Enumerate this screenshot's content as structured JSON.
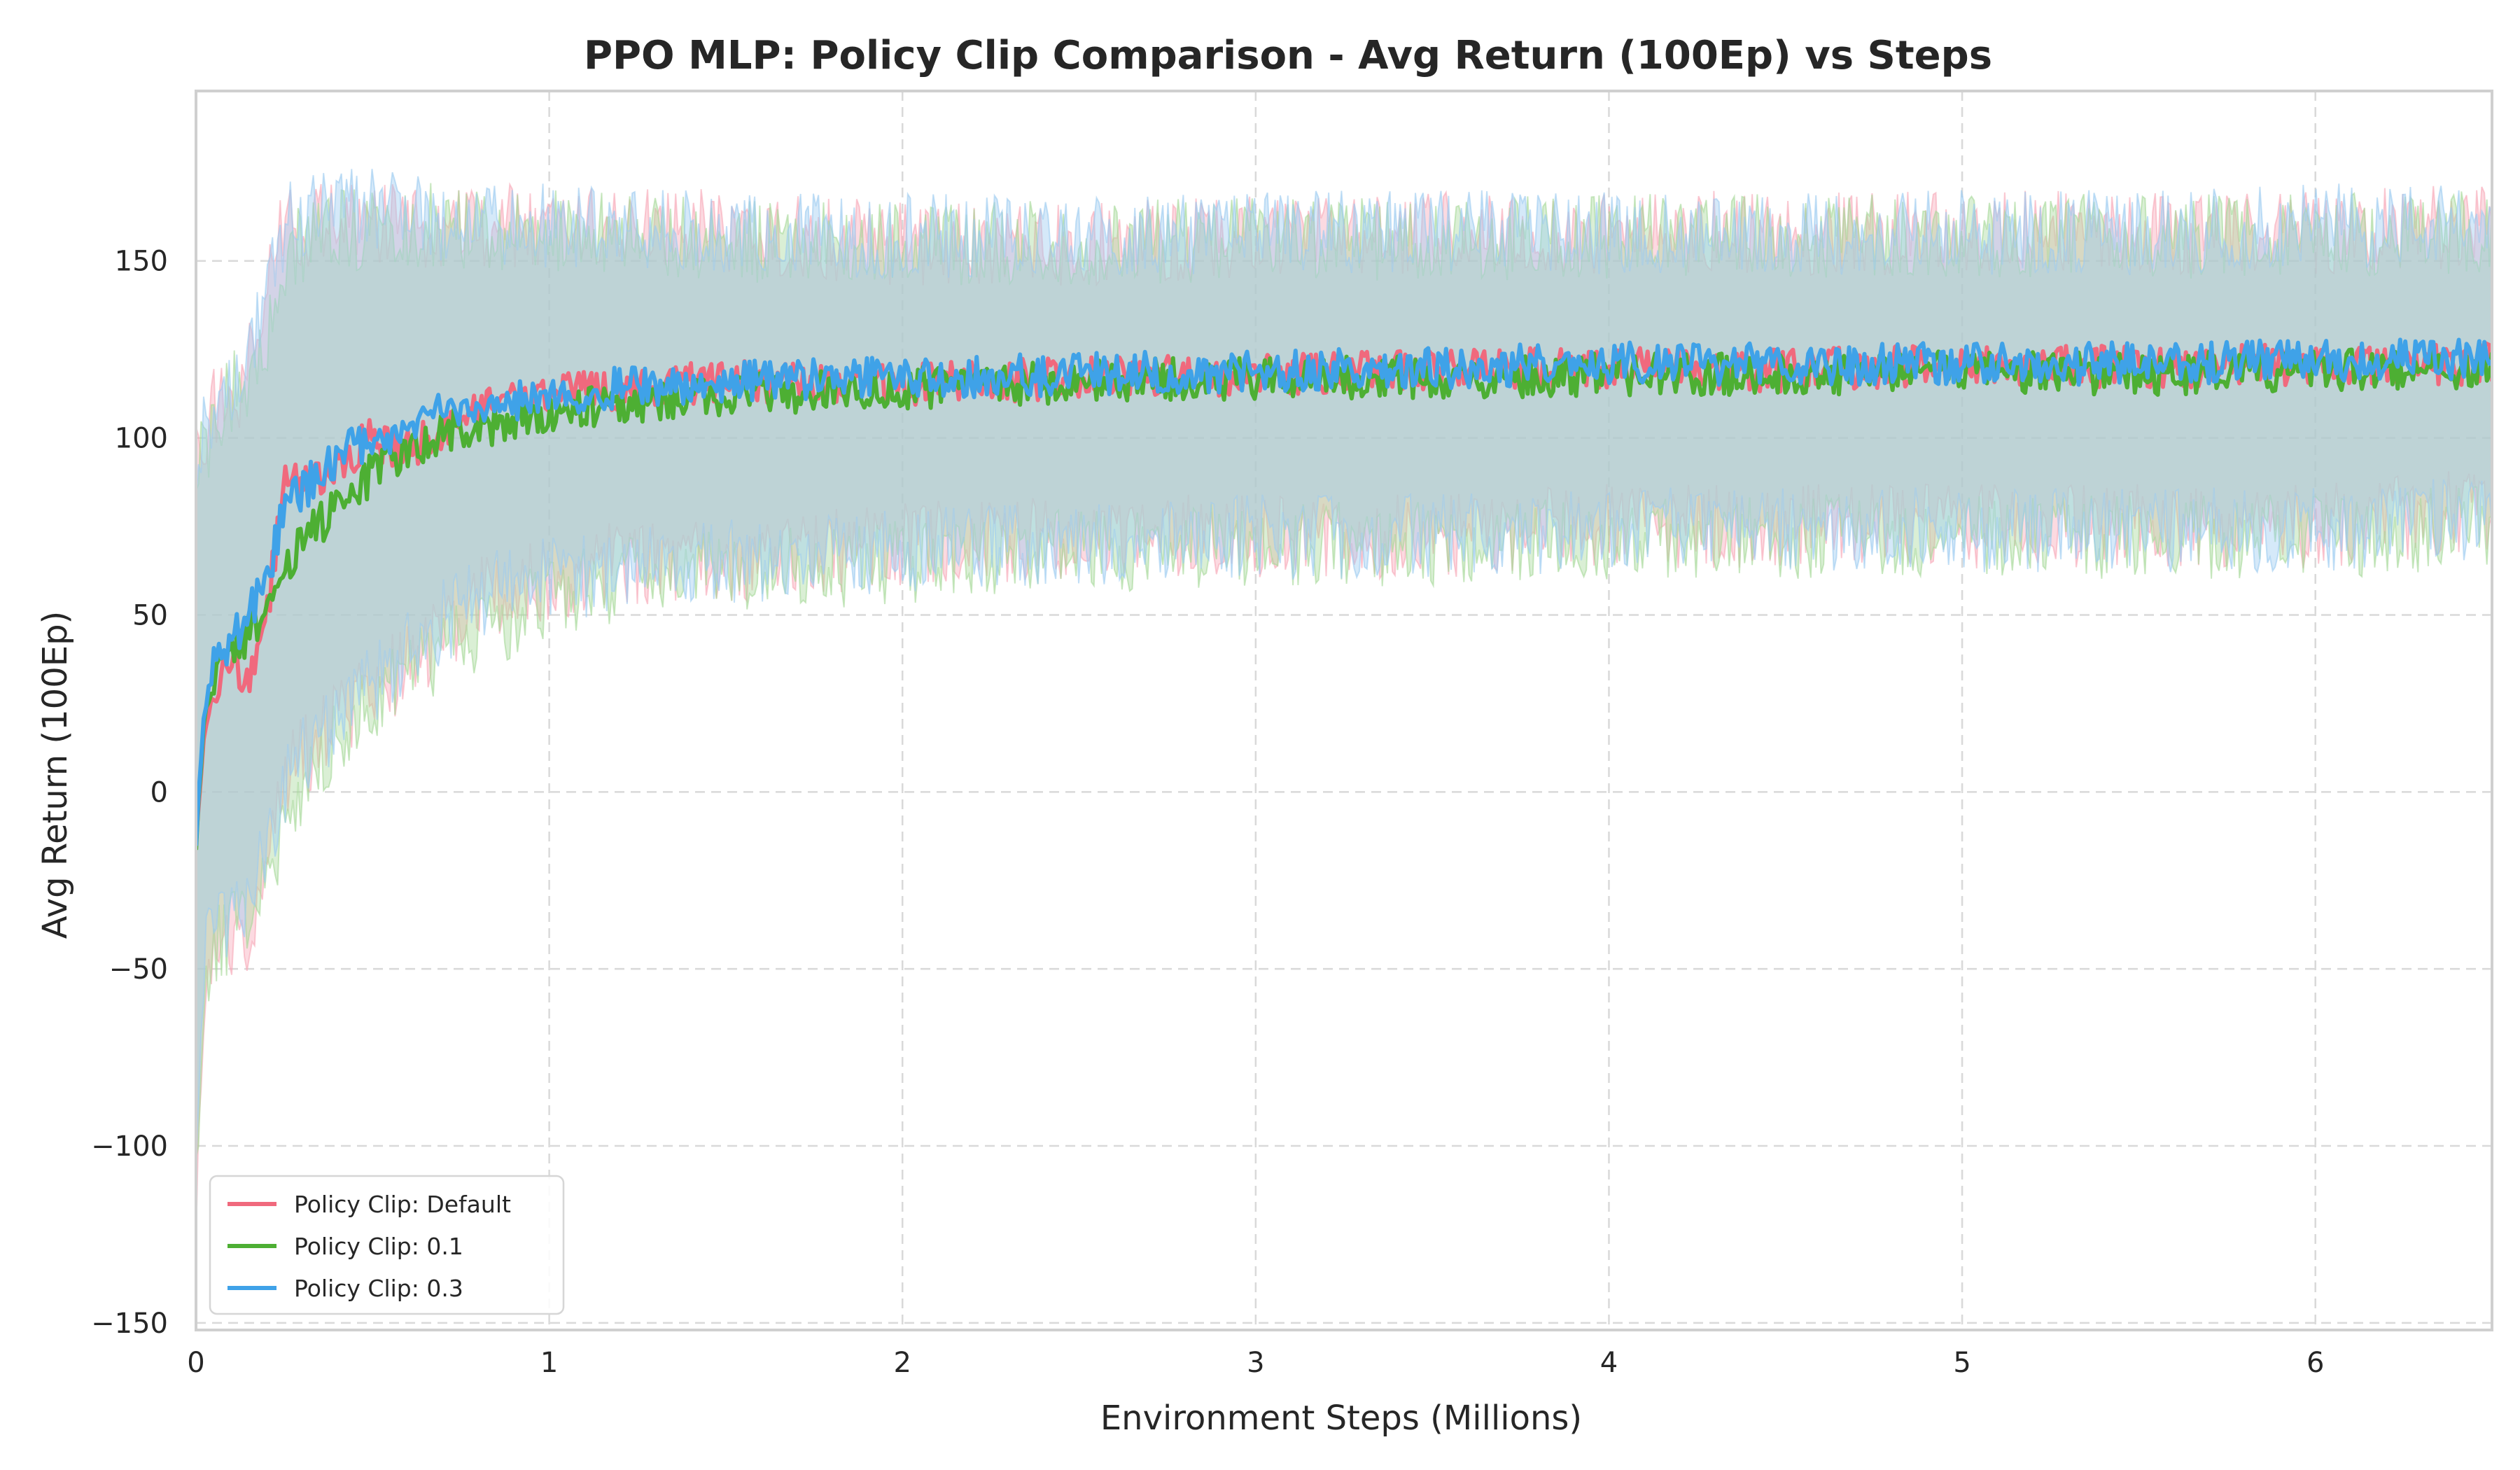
{
  "chart_data": {
    "type": "line",
    "title": "PPO MLP: Policy Clip Comparison - Avg Return (100Ep) vs Steps",
    "xlabel": "Environment Steps (Millions)",
    "ylabel": "Avg Return (100Ep)",
    "xlim": [
      0,
      6.5
    ],
    "ylim": [
      -152,
      198
    ],
    "xticks": [
      0,
      1,
      2,
      3,
      4,
      5,
      6
    ],
    "xtick_labels": [
      "0",
      "1",
      "2",
      "3",
      "4",
      "5",
      "6"
    ],
    "yticks": [
      -150,
      -100,
      -50,
      0,
      50,
      100,
      150
    ],
    "ytick_labels": [
      "−150",
      "−100",
      "−50",
      "0",
      "50",
      "100",
      "150"
    ],
    "grid": true,
    "legend_position": "lower-left",
    "series": [
      {
        "name": "Policy Clip: Default",
        "color": "#f0697d",
        "band_color": "#f7a8b8",
        "x": [
          0,
          0.02,
          0.05,
          0.1,
          0.15,
          0.2,
          0.25,
          0.3,
          0.4,
          0.5,
          0.6,
          0.7,
          0.8,
          1.0,
          1.2,
          1.5,
          2.0,
          2.5,
          3.0,
          3.5,
          4.0,
          4.5,
          5.0,
          5.5,
          6.0,
          6.5
        ],
        "values": [
          -15,
          15,
          28,
          38,
          32,
          48,
          90,
          88,
          92,
          100,
          96,
          103,
          108,
          112,
          114,
          116,
          115,
          117,
          118,
          119,
          120,
          119,
          121,
          120,
          121,
          121
        ],
        "lower": [
          -120,
          -70,
          -45,
          -45,
          -40,
          -20,
          5,
          10,
          20,
          30,
          35,
          45,
          55,
          60,
          65,
          65,
          70,
          72,
          72,
          72,
          75,
          75,
          75,
          75,
          75,
          80
        ],
        "upper": [
          95,
          95,
          110,
          110,
          120,
          145,
          165,
          160,
          160,
          160,
          160,
          160,
          160,
          160,
          160,
          158,
          155,
          155,
          157,
          158,
          158,
          158,
          158,
          158,
          158,
          160
        ]
      },
      {
        "name": "Policy Clip: 0.1",
        "color": "#4daf33",
        "band_color": "#a6d89a",
        "x": [
          0,
          0.02,
          0.05,
          0.1,
          0.15,
          0.2,
          0.25,
          0.3,
          0.4,
          0.5,
          0.6,
          0.7,
          0.8,
          1.0,
          1.2,
          1.5,
          2.0,
          2.5,
          3.0,
          3.5,
          4.0,
          4.5,
          5.0,
          5.5,
          6.0,
          6.5
        ],
        "values": [
          -15,
          18,
          32,
          40,
          45,
          50,
          62,
          72,
          80,
          90,
          96,
          102,
          103,
          106,
          110,
          112,
          114,
          116,
          117,
          117,
          118,
          118,
          119,
          118,
          119,
          120
        ],
        "lower": [
          -110,
          -60,
          -45,
          -40,
          -35,
          -25,
          -10,
          0,
          15,
          25,
          35,
          40,
          45,
          55,
          60,
          62,
          65,
          68,
          70,
          70,
          72,
          72,
          72,
          72,
          72,
          75
        ],
        "upper": [
          90,
          95,
          105,
          112,
          118,
          130,
          150,
          155,
          158,
          160,
          160,
          160,
          158,
          158,
          158,
          156,
          155,
          155,
          156,
          156,
          157,
          157,
          157,
          157,
          157,
          158
        ]
      },
      {
        "name": "Policy Clip: 0.3",
        "color": "#3fa2e8",
        "band_color": "#9ccbf0",
        "x": [
          0,
          0.02,
          0.05,
          0.1,
          0.15,
          0.2,
          0.25,
          0.3,
          0.4,
          0.5,
          0.6,
          0.7,
          0.8,
          1.0,
          1.2,
          1.5,
          2.0,
          2.5,
          3.0,
          3.5,
          4.0,
          4.5,
          5.0,
          5.5,
          6.0,
          6.5
        ],
        "values": [
          -15,
          20,
          35,
          42,
          50,
          60,
          80,
          85,
          95,
          100,
          103,
          108,
          110,
          112,
          114,
          116,
          117,
          118,
          119,
          120,
          121,
          121,
          121,
          121,
          122,
          122
        ],
        "lower": [
          -100,
          -50,
          -40,
          -35,
          -30,
          -15,
          0,
          10,
          20,
          30,
          40,
          48,
          55,
          60,
          62,
          65,
          68,
          70,
          72,
          72,
          74,
          74,
          74,
          74,
          74,
          78
        ],
        "upper": [
          90,
          100,
          108,
          115,
          125,
          140,
          160,
          162,
          165,
          165,
          163,
          162,
          160,
          160,
          160,
          158,
          157,
          157,
          158,
          158,
          158,
          158,
          158,
          158,
          160,
          160
        ]
      }
    ]
  }
}
